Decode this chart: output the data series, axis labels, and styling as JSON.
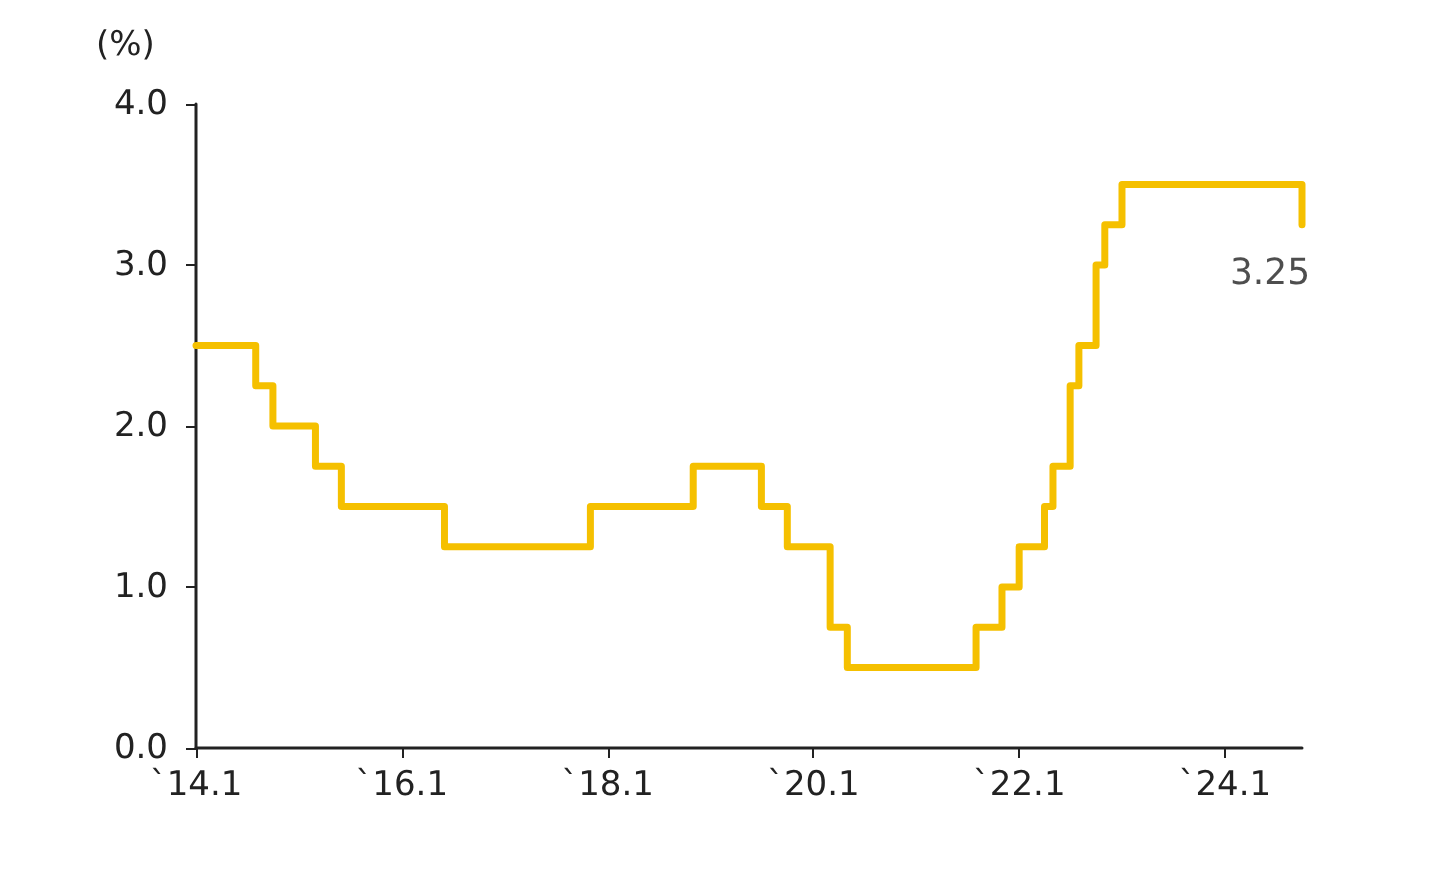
{
  "chart_data": {
    "type": "step",
    "ylabel": "(%)",
    "x": [
      "2014-01",
      "2014-08",
      "2014-10",
      "2015-03",
      "2015-06",
      "2016-06",
      "2017-11",
      "2018-11",
      "2019-07",
      "2019-10",
      "2020-03",
      "2020-05",
      "2021-08",
      "2021-11",
      "2022-01",
      "2022-04",
      "2022-05",
      "2022-07",
      "2022-08",
      "2022-10",
      "2022-11",
      "2023-01",
      "2024-10"
    ],
    "series": [
      {
        "color": "#f5c000",
        "values": [
          2.5,
          2.25,
          2.0,
          1.75,
          1.5,
          1.25,
          1.5,
          1.75,
          1.5,
          1.25,
          0.75,
          0.5,
          0.75,
          1.0,
          1.25,
          1.5,
          1.75,
          2.25,
          2.5,
          3.0,
          3.25,
          3.5,
          3.25
        ]
      }
    ],
    "xlim": [
      "2014-01",
      "2024-10"
    ],
    "xticks": [
      {
        "value": "2014-01",
        "label": "`14.1"
      },
      {
        "value": "2016-01",
        "label": "`16.1"
      },
      {
        "value": "2018-01",
        "label": "`18.1"
      },
      {
        "value": "2020-01",
        "label": "`20.1"
      },
      {
        "value": "2022-01",
        "label": "`22.1"
      },
      {
        "value": "2024-01",
        "label": "`24.1"
      }
    ],
    "ylim": [
      0,
      4
    ],
    "yticks": [
      {
        "value": 0,
        "label": "0.0"
      },
      {
        "value": 1,
        "label": "1.0"
      },
      {
        "value": 2,
        "label": "2.0"
      },
      {
        "value": 3,
        "label": "3.0"
      },
      {
        "value": 4,
        "label": "4.0"
      }
    ],
    "annotations": [
      {
        "text": "3.25",
        "x": "2024-10",
        "y": 3.25
      }
    ],
    "grid": false,
    "marker": "none",
    "line_style": "solid"
  }
}
